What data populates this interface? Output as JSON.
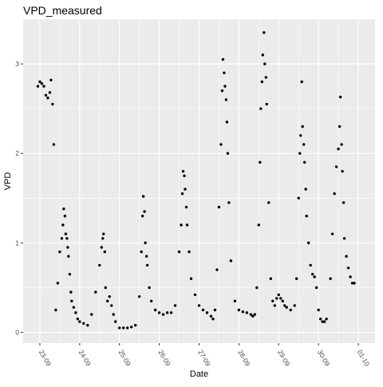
{
  "chart_data": {
    "type": "scatter",
    "title": "VPD_measured",
    "xlabel": "Date",
    "ylabel": "VPD",
    "x_ticks": [
      "23-09",
      "24-09",
      "25-09",
      "26-09",
      "27-09",
      "28-09",
      "29-09",
      "30-09",
      "01-10"
    ],
    "x_tick_days": [
      23,
      24,
      25,
      26,
      27,
      28,
      29,
      30,
      31
    ],
    "xlim": [
      22.58,
      31.42
    ],
    "y_ticks": [
      "0",
      "1",
      "2",
      "3"
    ],
    "y_tick_values": [
      0,
      1,
      2,
      3
    ],
    "ylim": [
      -0.12,
      3.5
    ],
    "grid": true,
    "point_color": "#000000",
    "panel_color": "#ebebeb",
    "series": [
      {
        "x": [
          22.95,
          23.0,
          23.05,
          23.1,
          23.15,
          23.2,
          23.25,
          23.28,
          23.32,
          23.35,
          23.4,
          23.45,
          23.5,
          23.55,
          23.58,
          23.6,
          23.63,
          23.65,
          23.68,
          23.7,
          23.72,
          23.75,
          23.78,
          23.8,
          23.85,
          23.9,
          23.95,
          24.0,
          24.1,
          24.2,
          24.3,
          24.4,
          24.5,
          24.55,
          24.58,
          24.6,
          24.63,
          24.65,
          24.7,
          24.75,
          24.8,
          24.85,
          24.9,
          25.0,
          25.1,
          25.2,
          25.3,
          25.4,
          25.5,
          25.55,
          25.58,
          25.6,
          25.63,
          25.65,
          25.68,
          25.7,
          25.75,
          25.8,
          25.9,
          26.0,
          26.1,
          26.2,
          26.3,
          26.4,
          26.5,
          26.55,
          26.58,
          26.6,
          26.63,
          26.65,
          26.68,
          26.7,
          26.75,
          26.8,
          26.9,
          27.0,
          27.1,
          27.2,
          27.3,
          27.35,
          27.4,
          27.45,
          27.5,
          27.55,
          27.58,
          27.6,
          27.63,
          27.65,
          27.68,
          27.7,
          27.72,
          27.75,
          27.8,
          27.9,
          28.0,
          28.1,
          28.2,
          28.3,
          28.35,
          28.4,
          28.45,
          28.5,
          28.53,
          28.55,
          28.58,
          28.6,
          28.63,
          28.65,
          28.68,
          28.7,
          28.75,
          28.8,
          28.85,
          28.9,
          28.95,
          29.0,
          29.05,
          29.1,
          29.15,
          29.2,
          29.3,
          29.4,
          29.45,
          29.5,
          29.53,
          29.55,
          29.58,
          29.6,
          29.63,
          29.65,
          29.68,
          29.7,
          29.75,
          29.8,
          29.85,
          29.9,
          29.95,
          30.0,
          30.05,
          30.1,
          30.15,
          30.2,
          30.3,
          30.35,
          30.4,
          30.45,
          30.5,
          30.53,
          30.55,
          30.58,
          30.6,
          30.63,
          30.65,
          30.7,
          30.75,
          30.8,
          30.85,
          30.9
        ],
        "y": [
          2.75,
          2.8,
          2.78,
          2.75,
          2.65,
          2.62,
          2.68,
          2.82,
          2.55,
          2.1,
          0.25,
          0.55,
          0.9,
          1.05,
          1.2,
          1.38,
          1.3,
          1.1,
          1.05,
          0.95,
          0.85,
          0.65,
          0.45,
          0.35,
          0.28,
          0.22,
          0.15,
          0.12,
          0.1,
          0.08,
          0.2,
          0.45,
          0.75,
          0.95,
          1.05,
          1.1,
          0.9,
          0.5,
          0.35,
          0.4,
          0.3,
          0.2,
          0.12,
          0.05,
          0.05,
          0.05,
          0.06,
          0.08,
          0.4,
          0.9,
          1.3,
          1.52,
          1.35,
          1.0,
          0.85,
          0.75,
          0.5,
          0.35,
          0.25,
          0.22,
          0.2,
          0.22,
          0.22,
          0.3,
          0.9,
          1.2,
          1.55,
          1.8,
          1.75,
          1.6,
          1.4,
          1.2,
          0.9,
          0.6,
          0.42,
          0.3,
          0.25,
          0.22,
          0.18,
          0.15,
          0.25,
          0.7,
          1.4,
          2.1,
          2.7,
          3.05,
          2.9,
          2.75,
          2.6,
          2.35,
          2.0,
          1.45,
          0.8,
          0.35,
          0.25,
          0.23,
          0.22,
          0.2,
          0.18,
          0.2,
          0.5,
          1.2,
          1.9,
          2.5,
          2.8,
          3.1,
          3.35,
          3.0,
          2.85,
          2.55,
          1.45,
          0.6,
          0.35,
          0.3,
          0.38,
          0.42,
          0.38,
          0.35,
          0.3,
          0.28,
          0.25,
          0.3,
          0.6,
          1.5,
          2.0,
          2.2,
          2.8,
          2.3,
          2.1,
          1.9,
          1.6,
          1.3,
          1.0,
          0.75,
          0.65,
          0.62,
          0.5,
          0.25,
          0.15,
          0.12,
          0.12,
          0.15,
          0.6,
          1.1,
          1.55,
          1.85,
          2.05,
          2.3,
          2.63,
          2.1,
          1.8,
          1.45,
          1.05,
          0.85,
          0.72,
          0.62,
          0.55,
          0.55
        ]
      }
    ]
  }
}
